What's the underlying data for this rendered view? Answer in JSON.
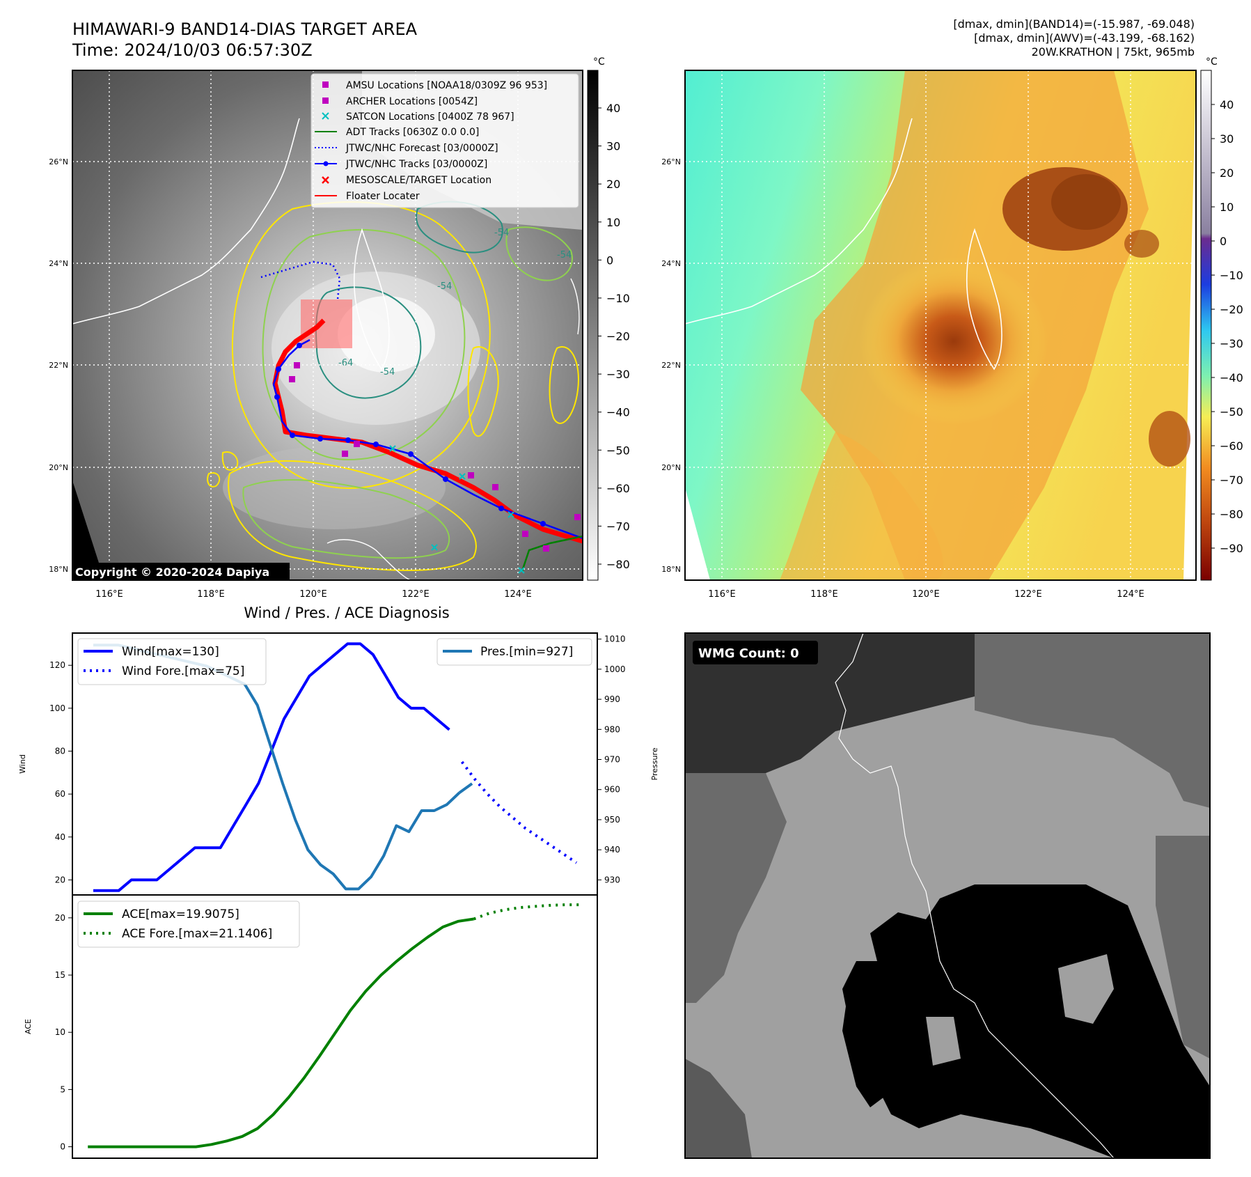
{
  "header": {
    "title": "HIMAWARI-9 BAND14-DIAS TARGET AREA",
    "time": "Time: 2024/10/03 06:57:30Z",
    "stat1": "[dmax, dmin](BAND14)=(-15.987, -69.048)",
    "stat2": "[dmax, dmin](AWV)=(-43.199, -68.162)",
    "storm": "20W.KRATHON | 75kt, 965mb"
  },
  "map": {
    "lat_ticks": [
      "26°N",
      "24°N",
      "22°N",
      "20°N",
      "18°N"
    ],
    "lon_ticks": [
      "116°E",
      "118°E",
      "120°E",
      "122°E",
      "124°E"
    ],
    "copyright": "Copyright © 2020-2024 Dapiya",
    "unit": "°C",
    "gray_cbar_ticks": [
      "40",
      "30",
      "20",
      "10",
      "0",
      "−10",
      "−20",
      "−30",
      "−40",
      "−50",
      "−60",
      "−70",
      "−80"
    ],
    "color_cbar_ticks": [
      "40",
      "30",
      "20",
      "10",
      "0",
      "−10",
      "−20",
      "−30",
      "−40",
      "−50",
      "−60",
      "−70",
      "−80",
      "−90"
    ],
    "contour_labels": [
      "-64",
      "-54",
      "-54",
      "-54",
      "-54"
    ],
    "colors": {
      "track_blue": "#0000ff",
      "forecast_blue": "#0000ff",
      "floater": "#ff0000",
      "adt_green": "#008000",
      "amsu": "#bf00bf",
      "satcon": "#00bfbf",
      "contour_yellow": "#ffe600",
      "contour_green": "#8fd14f",
      "contour_teal": "#2a8f80"
    }
  },
  "legend": {
    "items": [
      {
        "label": "AMSU Locations [NOAA18/0309Z 96 953]",
        "marker": "square",
        "color": "#bf00bf"
      },
      {
        "label": "ARCHER Locations [0054Z]",
        "marker": "square",
        "color": "#bf00bf"
      },
      {
        "label": "SATCON Locations [0400Z 78 967]",
        "marker": "x",
        "color": "#00bfbf"
      },
      {
        "label": "ADT Tracks [0630Z 0.0 0.0]",
        "marker": "line",
        "color": "#008000"
      },
      {
        "label": "JTWC/NHC Forecast [03/0000Z]",
        "marker": "dotted",
        "color": "#0000ff"
      },
      {
        "label": "JTWC/NHC Tracks [03/0000Z]",
        "marker": "line-dot",
        "color": "#0000ff"
      },
      {
        "label": "MESOSCALE/TARGET Location",
        "marker": "x",
        "color": "#ff0000"
      },
      {
        "label": "Floater Locater",
        "marker": "line",
        "color": "#ff0000"
      }
    ]
  },
  "diagnosis": {
    "title": "Wind / Pres. / ACE Diagnosis",
    "wind_label": "Wind",
    "pres_label": "Pressure",
    "ace_label": "ACE",
    "legend_wind": "Wind[max=130]",
    "legend_wind_fore": "Wind Fore.[max=75]",
    "legend_pres": "Pres.[min=927]",
    "legend_ace": "ACE[max=19.9075]",
    "legend_ace_fore": "ACE Fore.[max=21.1406]"
  },
  "wmg": {
    "label": "WMG Count: 0"
  },
  "chart_data": [
    {
      "type": "line",
      "name": "wind",
      "ylim": [
        13,
        135
      ],
      "yticks": [
        20,
        40,
        60,
        80,
        100,
        120
      ],
      "series": [
        {
          "name": "Wind[max=130]",
          "x": [
            0,
            1,
            2,
            3,
            4,
            5,
            6,
            7,
            8,
            9,
            10,
            11,
            12,
            13,
            14,
            15,
            16,
            17,
            18,
            19,
            20,
            21,
            22,
            23
          ],
          "values": [
            15,
            15,
            15,
            20,
            20,
            20,
            25,
            30,
            35,
            35,
            35,
            45,
            55,
            65,
            80,
            95,
            105,
            115,
            120,
            125,
            130,
            130,
            125,
            115
          ]
        },
        {
          "name": "Wind[max=130] (cont.)",
          "x": [
            23,
            24,
            25,
            26,
            27,
            28
          ],
          "values": [
            115,
            105,
            100,
            100,
            95,
            90
          ]
        },
        {
          "name": "Wind Fore.[max=75]",
          "x": [
            29,
            30,
            31,
            32,
            33,
            34,
            35,
            36,
            37,
            38
          ],
          "values": [
            75,
            67,
            60,
            54,
            49,
            44,
            40,
            36,
            32,
            28
          ]
        }
      ],
      "x_solid_end": 28.8
    },
    {
      "type": "line",
      "name": "pressure",
      "ylim": [
        925,
        1012
      ],
      "yticks": [
        930,
        940,
        950,
        960,
        970,
        980,
        990,
        1000,
        1010
      ],
      "series": [
        {
          "name": "Pres.[min=927]",
          "x": [
            0,
            1,
            2,
            3,
            4,
            5,
            6,
            7,
            8,
            9,
            10,
            11,
            12,
            13,
            14,
            15,
            16,
            17,
            18,
            19,
            20,
            21,
            22,
            23,
            24,
            25,
            26,
            27,
            28,
            29
          ],
          "values": [
            1008,
            1008,
            1008,
            1007,
            1006,
            1005,
            1004,
            1003,
            1002,
            1001,
            999,
            997,
            995,
            988,
            975,
            962,
            950,
            940,
            935,
            932,
            927,
            927,
            931,
            938,
            948,
            946,
            953,
            953,
            955,
            959
          ]
        },
        {
          "name": "Pres. end",
          "x": [
            29,
            30
          ],
          "values": [
            959,
            962
          ]
        }
      ]
    },
    {
      "type": "line",
      "name": "ace",
      "ylim": [
        -1,
        22
      ],
      "yticks": [
        0,
        5,
        10,
        15,
        20
      ],
      "series": [
        {
          "name": "ACE[max=19.9075]",
          "x": [
            0,
            2,
            4,
            6,
            8,
            10,
            12,
            14,
            16,
            18,
            20,
            22,
            24,
            26,
            28,
            30,
            32,
            34,
            36,
            38,
            40,
            42,
            44,
            46,
            48,
            50
          ],
          "values": [
            0,
            0,
            0,
            0,
            0,
            0,
            0,
            0,
            0.2,
            0.5,
            0.9,
            1.6,
            2.8,
            4.3,
            6.0,
            7.9,
            9.9,
            11.9,
            13.6,
            15.0,
            16.2,
            17.3,
            18.3,
            19.2,
            19.7,
            19.9
          ]
        },
        {
          "name": "ACE Fore.[max=21.1406]",
          "x": [
            50,
            52,
            54,
            56,
            58,
            60,
            62,
            64
          ],
          "values": [
            19.9,
            20.4,
            20.7,
            20.9,
            21.0,
            21.1,
            21.14,
            21.14
          ]
        }
      ],
      "xlim": [
        -2,
        66
      ]
    }
  ]
}
